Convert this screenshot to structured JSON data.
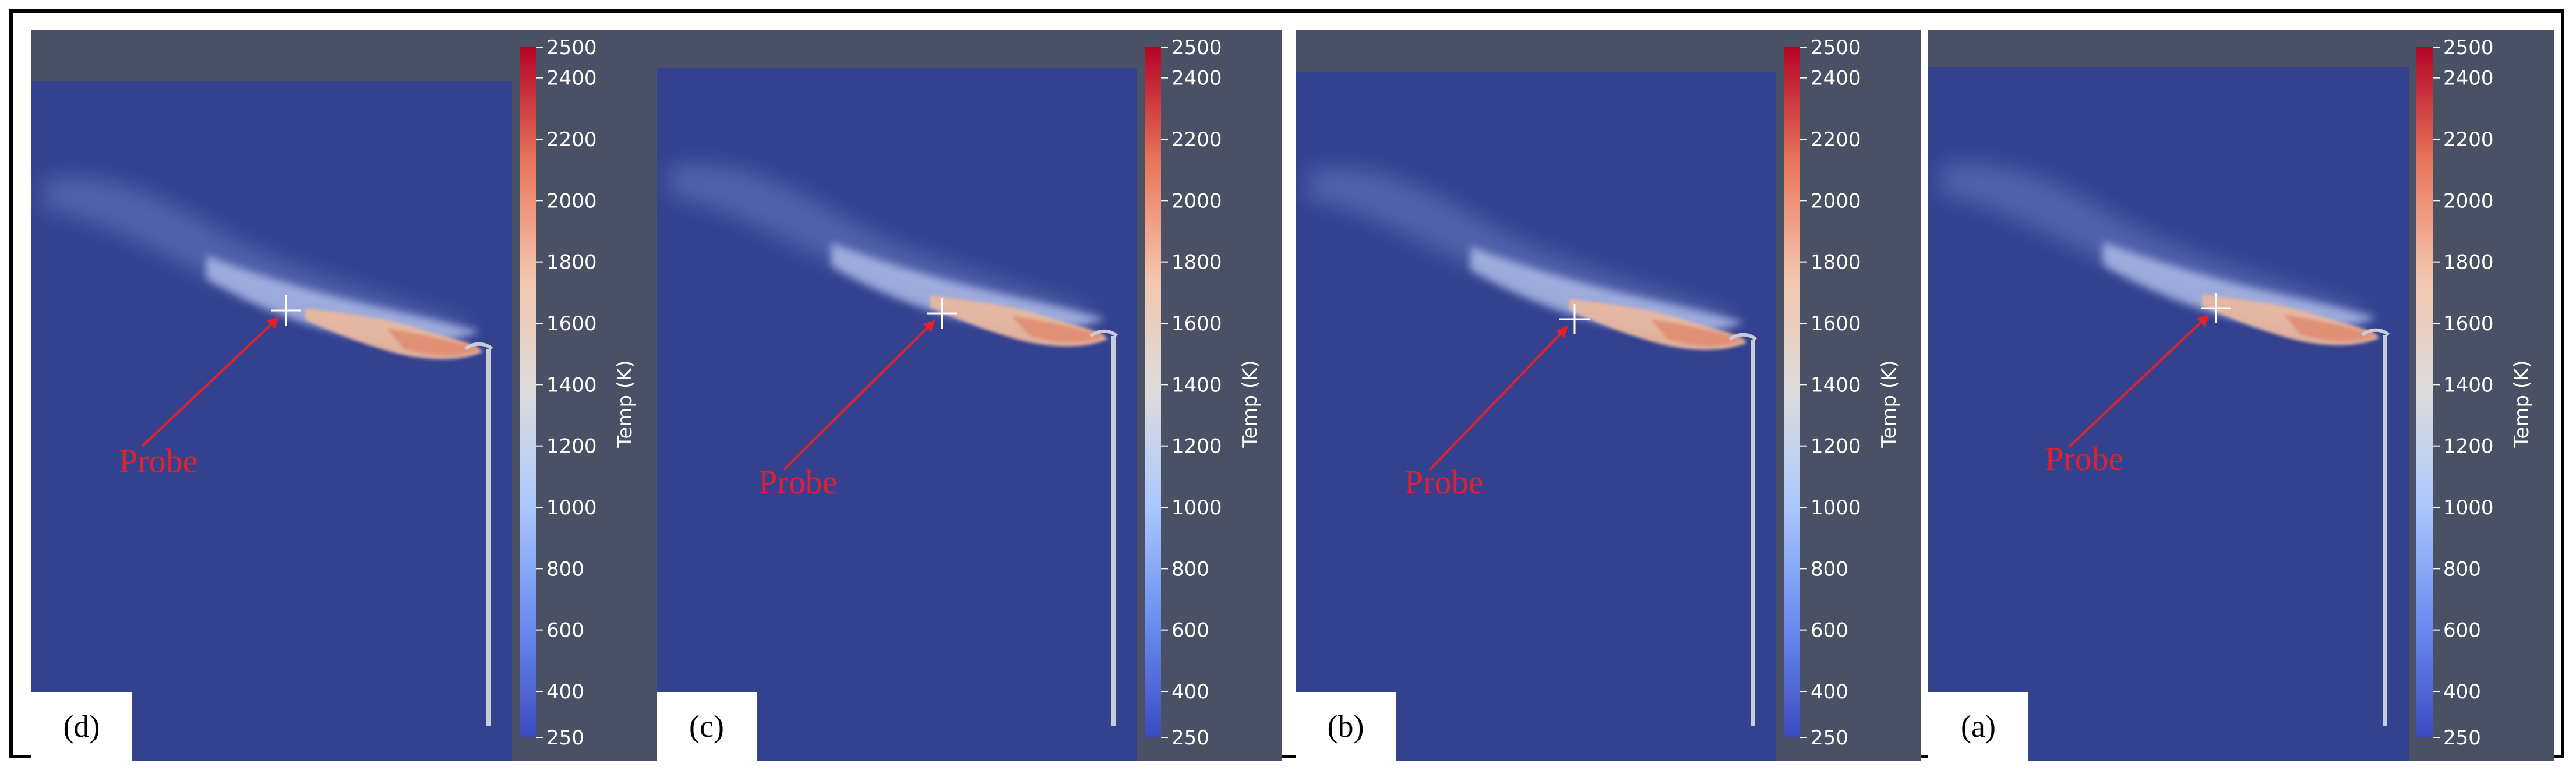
{
  "panels": [
    {
      "label": "(d)",
      "probe_label": "Probe",
      "probe_variant": "d"
    },
    {
      "label": "(c)",
      "probe_label": "Probe",
      "probe_variant": "c"
    },
    {
      "label": "(b)",
      "probe_label": "Probe",
      "probe_variant": "b"
    },
    {
      "label": "(a)",
      "probe_label": "Probe",
      "probe_variant": "a"
    }
  ],
  "colorbar": {
    "title": "Temp (K)",
    "ticks": [
      "2500",
      "2400",
      "2200",
      "2000",
      "1800",
      "1600",
      "1400",
      "1200",
      "1000",
      "800",
      "600",
      "400",
      "250"
    ],
    "colors": [
      "#b40426",
      "#e8765b",
      "#f4c5ad",
      "#dddcdc",
      "#aac7fd",
      "#6b8df0",
      "#3b4cc0"
    ]
  },
  "colors": {
    "domain_background": "#33418f",
    "panel_background": "#4a5164",
    "probe_arrow": "#e0202a",
    "probe_marker": "#ffffff"
  }
}
